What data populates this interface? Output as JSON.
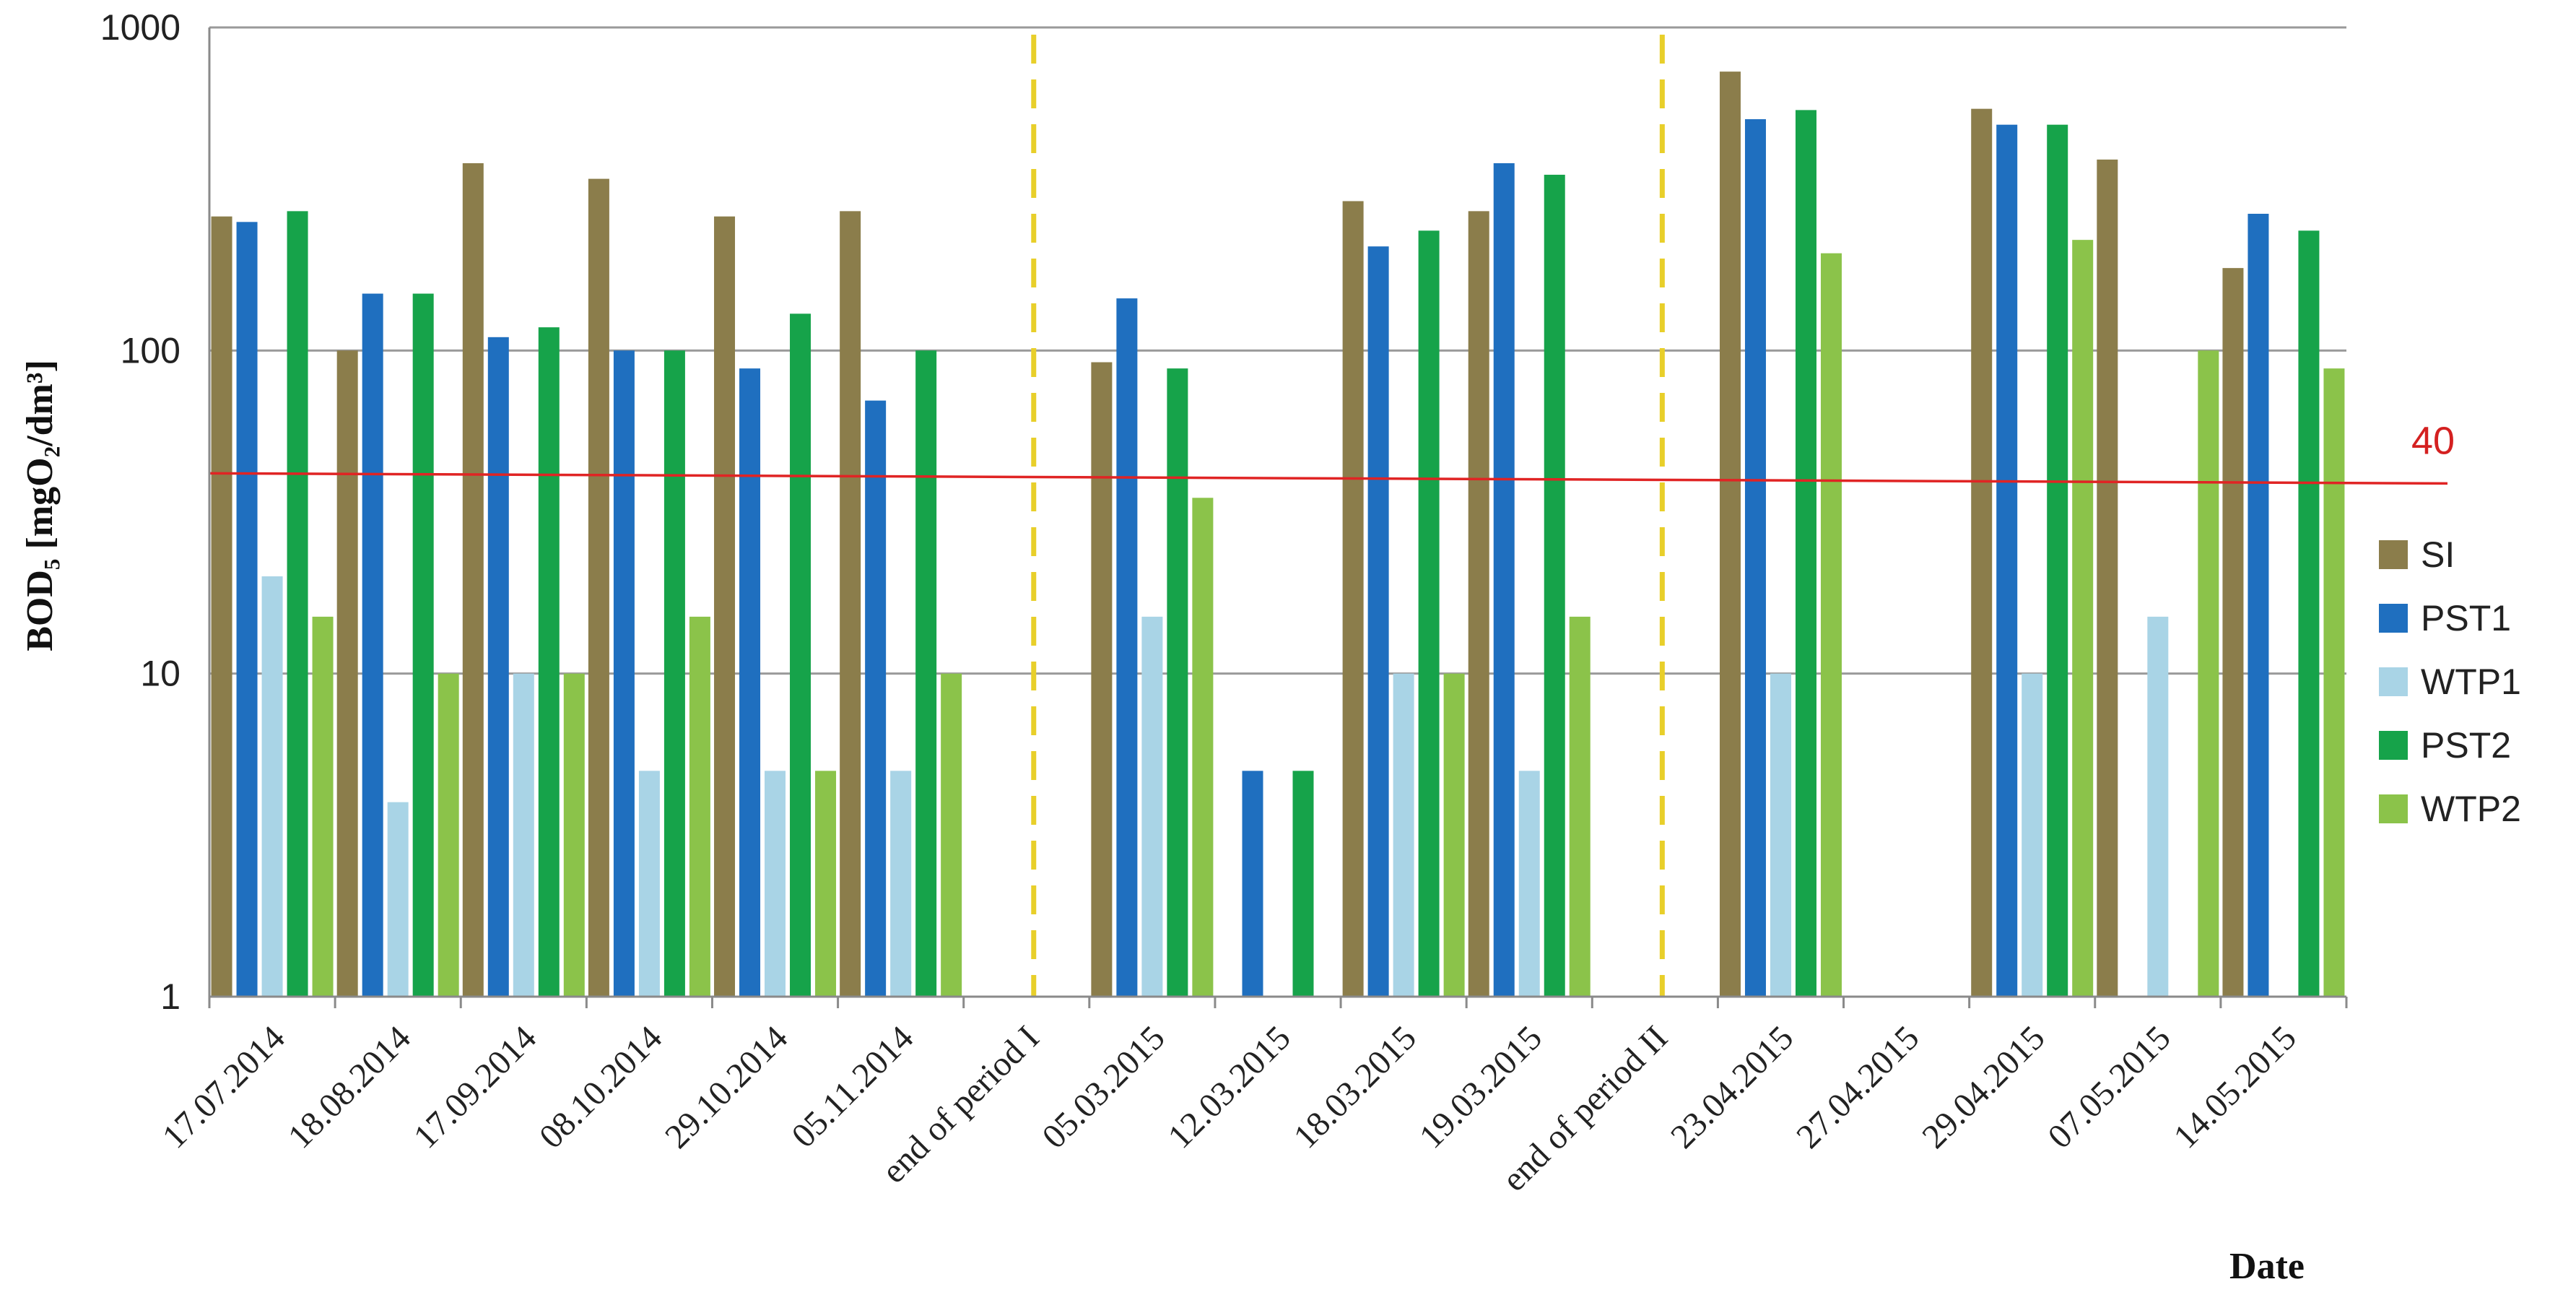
{
  "chart_data": {
    "type": "bar",
    "ylabel": "BOD₅ [mgO₂/dm³]",
    "xlabel": "Date",
    "yscale": "log",
    "ylim": [
      1,
      1000
    ],
    "yticks": [
      "1",
      "10",
      "100",
      "1000"
    ],
    "grid": "horizontal",
    "legend_position": "right",
    "categories": [
      "17.07.2014",
      "18.08.2014",
      "17.09.2014",
      "08.10.2014",
      "29.10.2014",
      "05.11.2014",
      "end of period I",
      "05.03.2015",
      "12.03.2015",
      "18.03.2015",
      "19.03.2015",
      "end of period II",
      "23.04.2015",
      "27.04.2015",
      "29.04.2015",
      "07.05.2015",
      "14.05.2015"
    ],
    "series": [
      {
        "name": "SI",
        "color": "#8B7D4B",
        "values": [
          260,
          100,
          380,
          340,
          260,
          270,
          null,
          92,
          null,
          290,
          270,
          null,
          730,
          null,
          560,
          390,
          180
        ]
      },
      {
        "name": "PST1",
        "color": "#1F6FBF",
        "values": [
          250,
          150,
          110,
          100,
          88,
          70,
          null,
          145,
          5,
          210,
          380,
          null,
          520,
          null,
          500,
          null,
          265
        ]
      },
      {
        "name": "WTP1",
        "color": "#A9D4E6",
        "values": [
          20,
          4,
          10,
          5,
          5,
          5,
          null,
          15,
          null,
          10,
          5,
          null,
          10,
          null,
          10,
          15,
          null
        ]
      },
      {
        "name": "PST2",
        "color": "#16A34A",
        "values": [
          270,
          150,
          118,
          100,
          130,
          100,
          null,
          88,
          5,
          235,
          350,
          null,
          555,
          null,
          500,
          null,
          235
        ]
      },
      {
        "name": "WTP2",
        "color": "#8BC34A",
        "values": [
          15,
          10,
          10,
          15,
          5,
          10,
          null,
          35,
          null,
          10,
          15,
          null,
          200,
          null,
          220,
          100,
          88
        ]
      }
    ],
    "reference_line": {
      "value": 40,
      "label": "40",
      "color": "#E02424"
    },
    "period_markers": [
      "end of period I",
      "end of period II"
    ],
    "period_marker_color": "#E8CF2A"
  }
}
